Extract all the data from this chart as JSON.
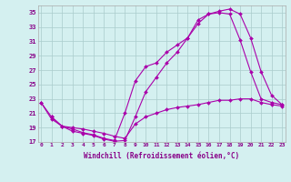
{
  "xlabel": "Windchill (Refroidissement éolien,°C)",
  "bg_color": "#d4f0f0",
  "grid_color": "#aacccc",
  "line_color": "#aa00aa",
  "line1_x": [
    0,
    1,
    2,
    3,
    4,
    5,
    6,
    7,
    8,
    9,
    10,
    11,
    12,
    13,
    14,
    15,
    16,
    17,
    18,
    19,
    20,
    21,
    22,
    23
  ],
  "line1_y": [
    22.5,
    20.2,
    19.2,
    18.5,
    18.2,
    17.9,
    17.4,
    17.1,
    17.2,
    20.5,
    24.0,
    26.0,
    28.0,
    29.5,
    31.5,
    33.5,
    34.8,
    35.2,
    35.5,
    34.8,
    31.5,
    26.8,
    23.5,
    22.2
  ],
  "line2_x": [
    0,
    1,
    2,
    3,
    4,
    5,
    6,
    7,
    8,
    9,
    10,
    11,
    12,
    13,
    14,
    15,
    16,
    17,
    18,
    19,
    20,
    21,
    22,
    23
  ],
  "line2_y": [
    22.5,
    20.5,
    19.2,
    18.8,
    18.3,
    18.0,
    17.5,
    17.2,
    21.0,
    25.5,
    27.5,
    28.0,
    29.5,
    30.5,
    31.5,
    34.0,
    34.8,
    35.0,
    34.8,
    31.2,
    26.8,
    23.0,
    22.5,
    22.2
  ],
  "line3_x": [
    1,
    2,
    3,
    4,
    5,
    6,
    7,
    8,
    9,
    10,
    11,
    12,
    13,
    14,
    15,
    16,
    17,
    18,
    19,
    20,
    21,
    22,
    23
  ],
  "line3_y": [
    20.5,
    19.2,
    19.0,
    18.8,
    18.5,
    18.2,
    17.8,
    17.5,
    19.5,
    20.5,
    21.0,
    21.5,
    21.8,
    22.0,
    22.2,
    22.5,
    22.8,
    22.8,
    23.0,
    23.0,
    22.5,
    22.2,
    22.0
  ],
  "ylim": [
    17,
    36
  ],
  "xlim": [
    -0.3,
    23.3
  ],
  "yticks": [
    17,
    19,
    21,
    23,
    25,
    27,
    29,
    31,
    33,
    35
  ],
  "xticks": [
    0,
    1,
    2,
    3,
    4,
    5,
    6,
    7,
    8,
    9,
    10,
    11,
    12,
    13,
    14,
    15,
    16,
    17,
    18,
    19,
    20,
    21,
    22,
    23
  ]
}
